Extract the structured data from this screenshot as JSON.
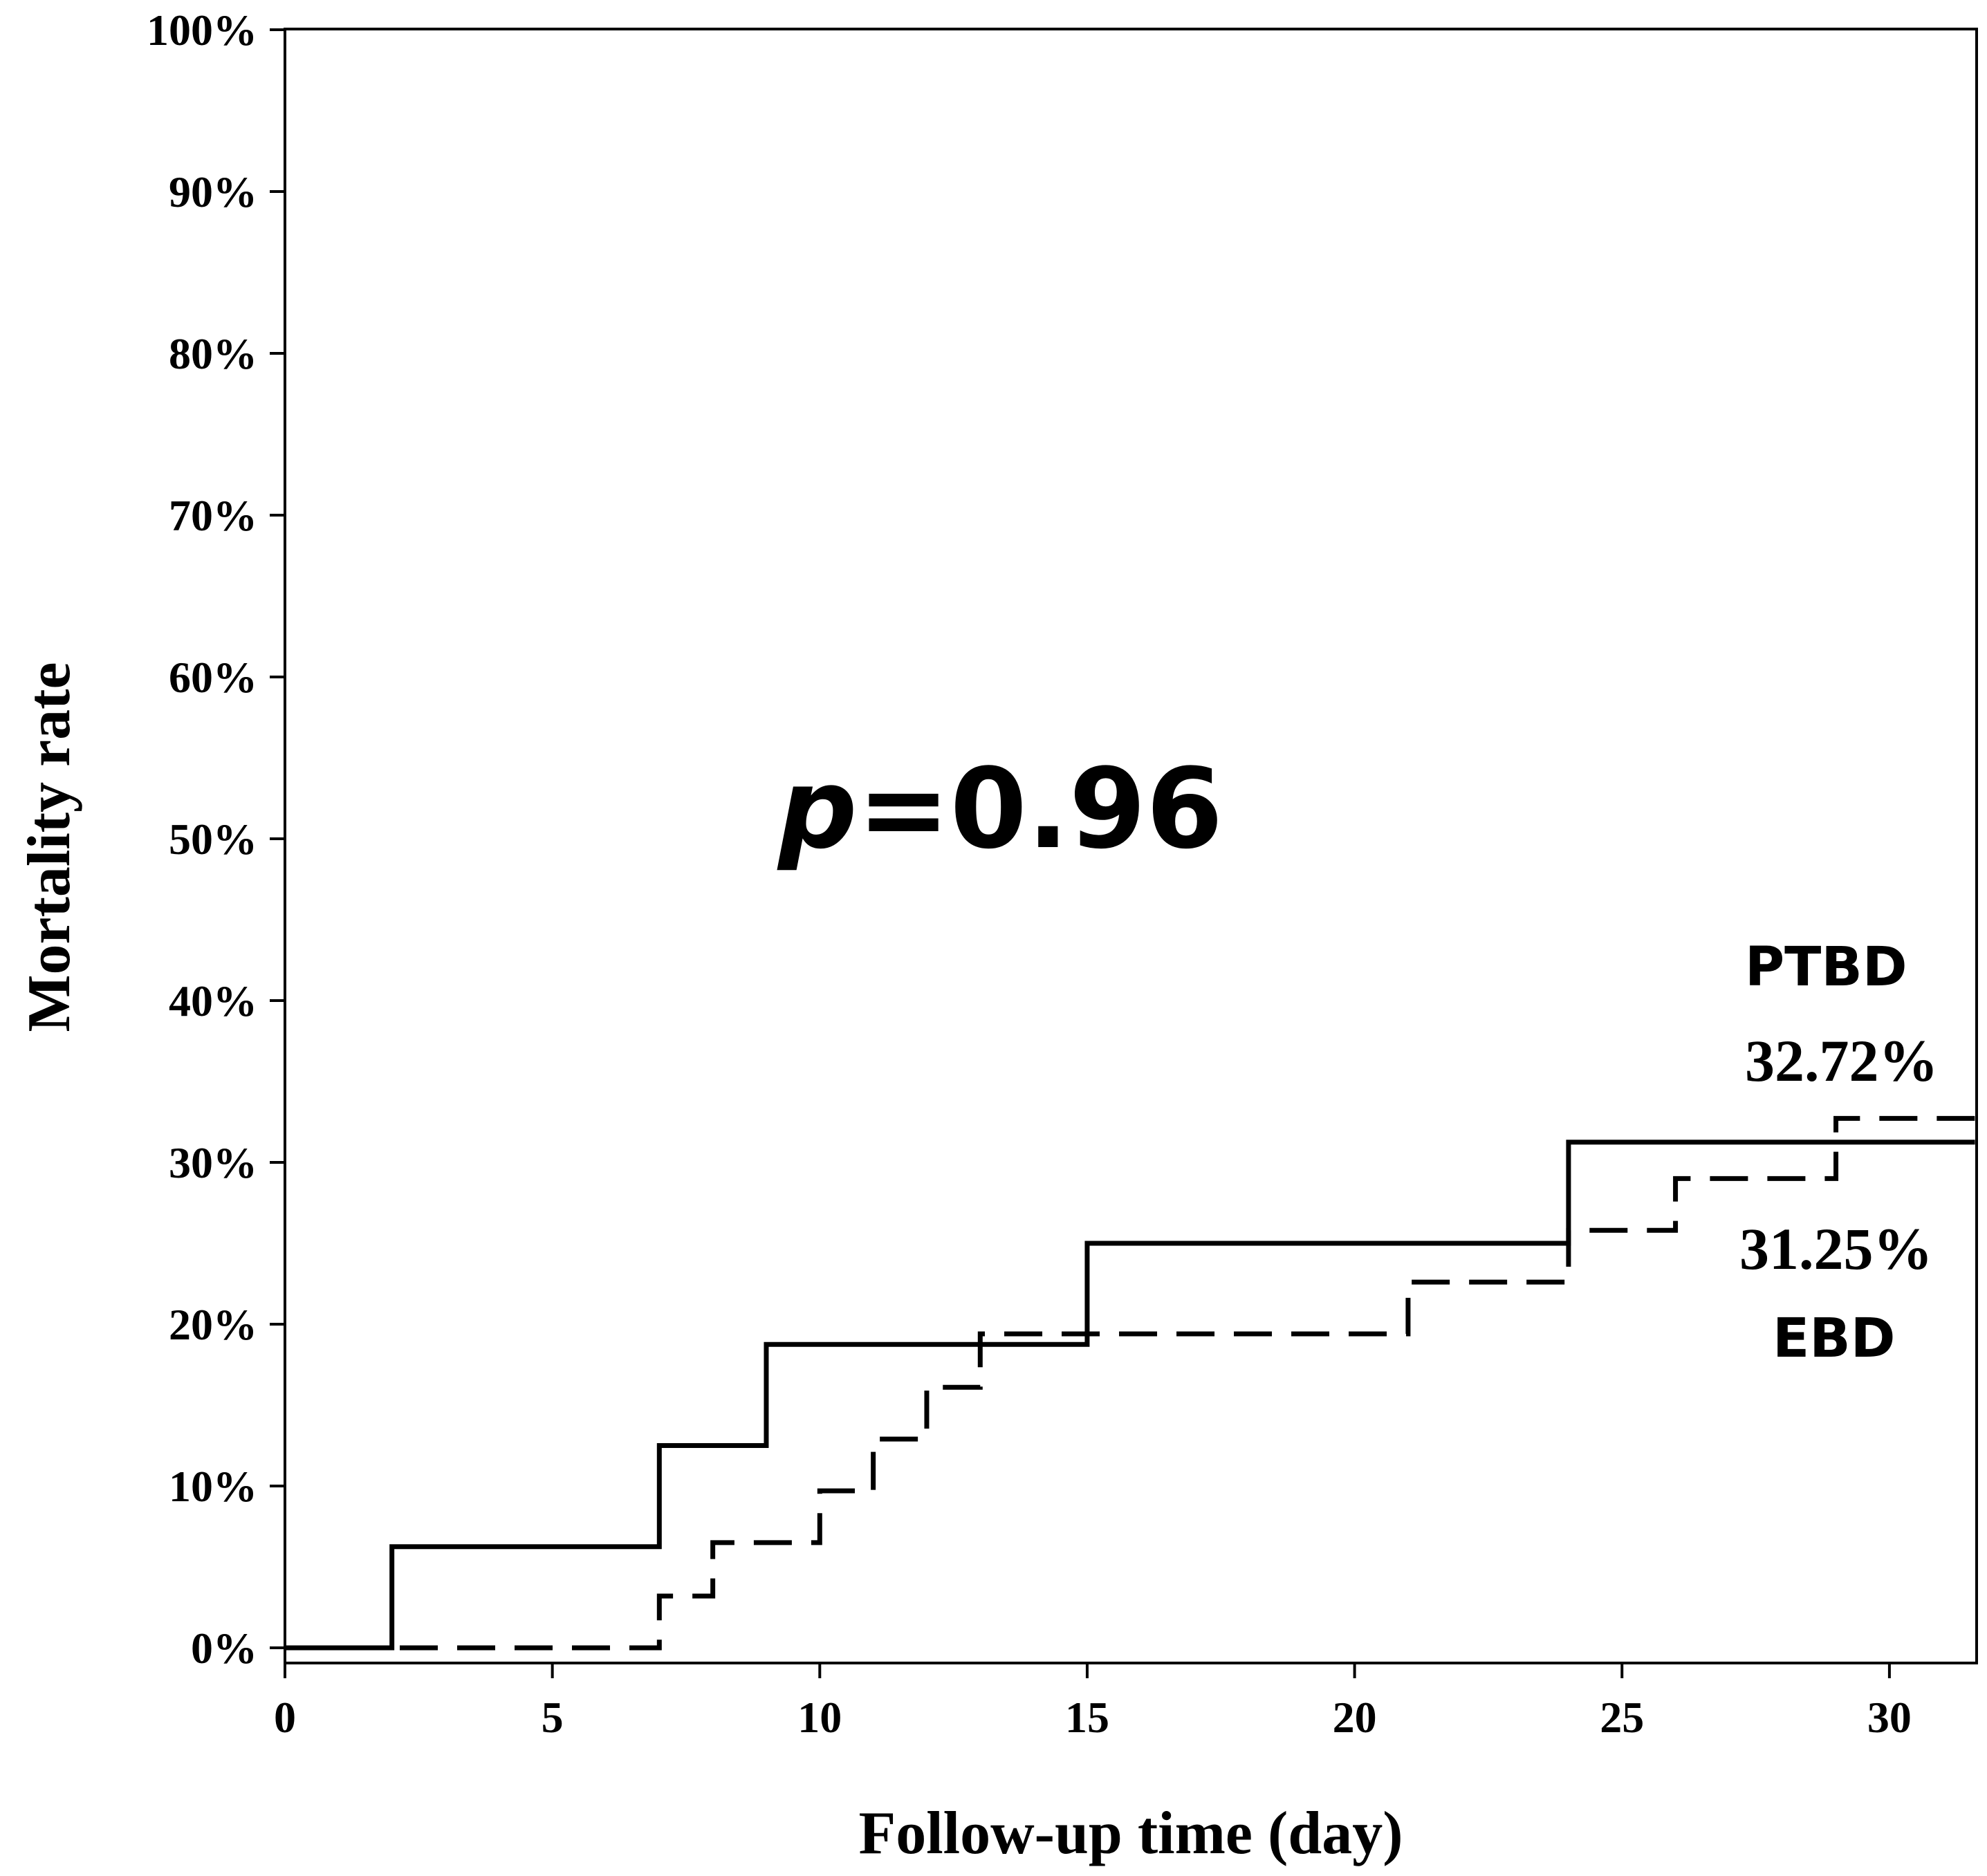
{
  "chart_data": {
    "type": "line",
    "subtype": "step",
    "title": "",
    "xlabel": "Follow-up time (day)",
    "ylabel": "Mortality rate",
    "xlim": [
      0,
      31.6
    ],
    "ylim": [
      -1,
      100
    ],
    "x_ticks": [
      0,
      5,
      10,
      15,
      20,
      25,
      30
    ],
    "x_tick_labels": [
      "0",
      "5",
      "10",
      "15",
      "20",
      "25",
      "30"
    ],
    "y_ticks": [
      0,
      10,
      20,
      30,
      40,
      50,
      60,
      70,
      80,
      90,
      100
    ],
    "y_tick_labels": [
      "0%",
      "10%",
      "20%",
      "30%",
      "40%",
      "50%",
      "60%",
      "70%",
      "80%",
      "90%",
      "100%"
    ],
    "grid": false,
    "legend": "none",
    "series": [
      {
        "name": "EBD",
        "line_style": "solid",
        "color": "#000000",
        "x": [
          0,
          2,
          7,
          9,
          15,
          24,
          31.6
        ],
        "y": [
          0,
          6.25,
          12.5,
          18.75,
          25.0,
          31.25,
          31.25
        ]
      },
      {
        "name": "PTBD",
        "line_style": "dashed",
        "color": "#000000",
        "x": [
          0,
          7,
          8,
          10,
          11,
          12,
          13,
          21,
          24,
          26,
          29,
          31.6
        ],
        "y": [
          0,
          3.2,
          6.5,
          9.7,
          12.9,
          16.1,
          19.4,
          22.6,
          25.8,
          29.0,
          32.72,
          32.72
        ]
      }
    ],
    "annotations": {
      "p_label": "p",
      "p_value": "=0.96",
      "ptbd_name": "PTBD",
      "ptbd_value": "32.72%",
      "ebd_value": "31.25%",
      "ebd_name": "EBD"
    }
  }
}
